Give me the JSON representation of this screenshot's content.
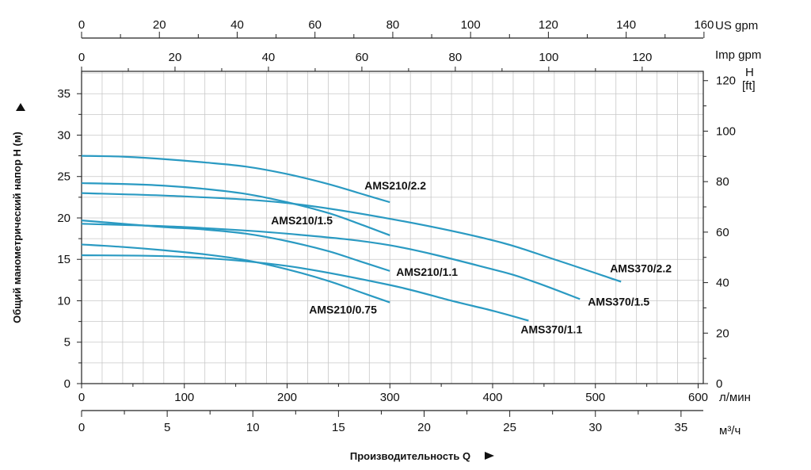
{
  "chart_data": {
    "type": "line",
    "xlabel": "Производительность Q",
    "ylabel": "Общий манометрический напор H (м)",
    "xlim": [
      0,
      600
    ],
    "ylim": [
      0,
      37.5
    ],
    "grid": true,
    "axes": {
      "lpm": {
        "unit": "л/мин",
        "ticks": [
          "0",
          "100",
          "200",
          "300",
          "400",
          "500",
          "600"
        ]
      },
      "m3h": {
        "unit": "м³/ч",
        "ticks": [
          "0",
          "5",
          "10",
          "15",
          "20",
          "25",
          "30",
          "35"
        ]
      },
      "usgpm": {
        "unit": "US gpm",
        "ticks": [
          "0",
          "20",
          "40",
          "60",
          "80",
          "100",
          "120",
          "140",
          "160"
        ]
      },
      "impgpm": {
        "unit": "Imp gpm",
        "ticks": [
          "0",
          "20",
          "40",
          "60",
          "80",
          "100",
          "120"
        ]
      },
      "m": {
        "ticks": [
          "0",
          "5",
          "10",
          "15",
          "20",
          "25",
          "30",
          "35"
        ]
      },
      "ft": {
        "unit_line1": "H",
        "unit_line2": "[ft]",
        "ticks": [
          "0",
          "20",
          "40",
          "60",
          "80",
          "100",
          "120"
        ]
      }
    },
    "series": [
      {
        "name": "AMS210/2.2",
        "color": "#2a9ac2",
        "x": [
          0,
          40,
          80,
          120,
          160,
          200,
          240,
          270,
          300
        ],
        "y": [
          27.5,
          27.4,
          27.1,
          26.7,
          26.2,
          25.3,
          24.1,
          23.0,
          21.9
        ]
      },
      {
        "name": "AMS210/1.5",
        "color": "#2a9ac2",
        "x": [
          0,
          40,
          80,
          120,
          160,
          200,
          240,
          270,
          300
        ],
        "y": [
          24.2,
          24.1,
          23.9,
          23.5,
          22.9,
          21.9,
          20.6,
          19.3,
          17.9
        ]
      },
      {
        "name": "AMS210/1.1",
        "color": "#2a9ac2",
        "x": [
          0,
          40,
          80,
          120,
          160,
          200,
          240,
          270,
          300
        ],
        "y": [
          19.7,
          19.3,
          18.9,
          18.6,
          18.1,
          17.2,
          16.0,
          14.8,
          13.6
        ]
      },
      {
        "name": "AMS210/0.75",
        "color": "#2a9ac2",
        "x": [
          0,
          40,
          80,
          120,
          160,
          200,
          240,
          270,
          300
        ],
        "y": [
          16.8,
          16.5,
          16.1,
          15.6,
          14.9,
          13.8,
          12.4,
          11.1,
          9.8
        ]
      },
      {
        "name": "AMS370/2.2",
        "color": "#2a9ac2",
        "x": [
          0,
          100,
          200,
          300,
          400,
          460,
          525
        ],
        "y": [
          23.0,
          22.6,
          21.8,
          19.9,
          17.3,
          15.0,
          12.3
        ]
      },
      {
        "name": "AMS370/1.5",
        "color": "#2a9ac2",
        "x": [
          0,
          100,
          200,
          300,
          400,
          440,
          485
        ],
        "y": [
          19.3,
          18.9,
          18.1,
          16.7,
          13.8,
          12.3,
          10.2
        ]
      },
      {
        "name": "AMS370/1.1",
        "color": "#2a9ac2",
        "x": [
          0,
          100,
          200,
          300,
          360,
          400,
          435
        ],
        "y": [
          15.5,
          15.3,
          14.2,
          11.9,
          10.0,
          8.8,
          7.6
        ]
      }
    ]
  }
}
